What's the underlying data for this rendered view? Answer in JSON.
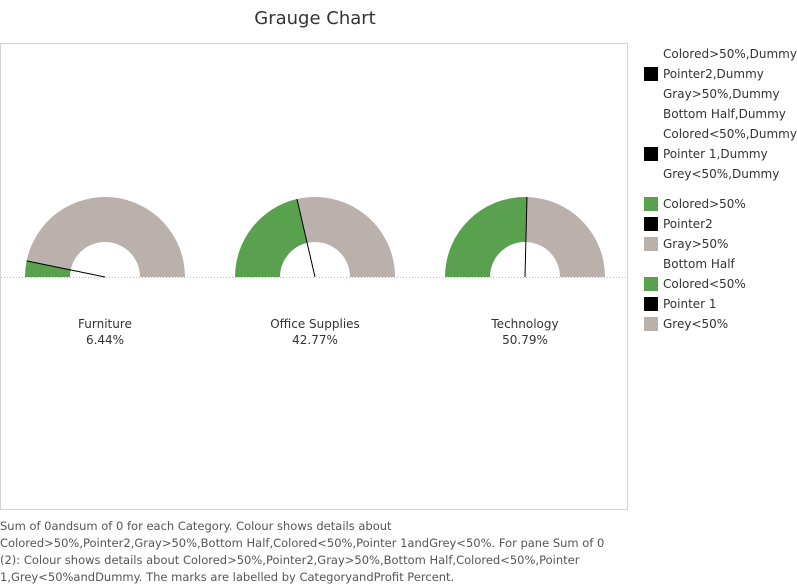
{
  "title": "Grauge Chart",
  "colors": {
    "green": "#59a14f",
    "gray": "#bab0ac",
    "black": "#000000",
    "white": "#ffffff",
    "baseline": "#bbbbbb"
  },
  "legend": {
    "group1": [
      {
        "label": "Colored>50%,Dummy",
        "color": null
      },
      {
        "label": "Pointer2,Dummy",
        "color": "#000000"
      },
      {
        "label": "Gray>50%,Dummy",
        "color": null
      },
      {
        "label": "Bottom Half,Dummy",
        "color": null
      },
      {
        "label": "Colored<50%,Dummy",
        "color": null
      },
      {
        "label": "Pointer 1,Dummy",
        "color": "#000000"
      },
      {
        "label": "Grey<50%,Dummy",
        "color": null
      }
    ],
    "group2": [
      {
        "label": "Colored>50%",
        "color": "#59a14f"
      },
      {
        "label": "Pointer2",
        "color": "#000000"
      },
      {
        "label": "Gray>50%",
        "color": "#bab0ac"
      },
      {
        "label": "Bottom Half",
        "color": null
      },
      {
        "label": "Colored<50%",
        "color": "#59a14f"
      },
      {
        "label": "Pointer 1",
        "color": "#000000"
      },
      {
        "label": "Grey<50%",
        "color": "#bab0ac"
      }
    ]
  },
  "chart_data": {
    "type": "gauge",
    "title": "Grauge Chart",
    "categories": [
      "Furniture",
      "Office Supplies",
      "Technology"
    ],
    "values": [
      6.44,
      42.77,
      50.79
    ],
    "value_labels": [
      "6.44%",
      "42.77%",
      "50.79%"
    ],
    "legend_position": "right"
  },
  "footer": "Sum of 0andsum of 0 for each Category. Colour shows details about Colored>50%,Pointer2,Gray>50%,Bottom Half,Colored<50%,Pointer 1andGrey<50%. For pane Sum of 0 (2): Colour shows details about Colored>50%,Pointer2,Gray>50%,Bottom Half,Colored<50%,Pointer 1,Grey<50%andDummy. The marks are labelled by CategoryandProfit Percent."
}
